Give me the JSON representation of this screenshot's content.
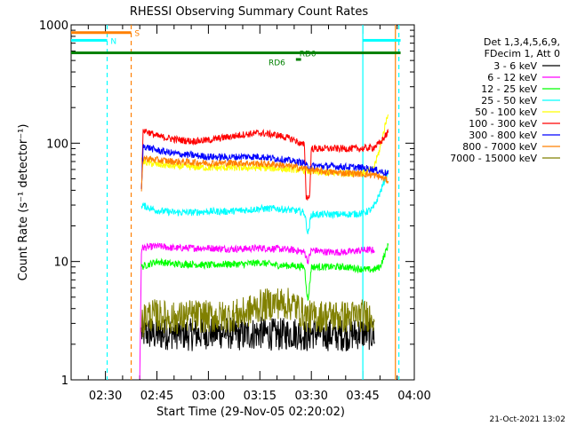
{
  "chart_data": {
    "type": "line",
    "title": "RHESSI Observing Summary Count Rates",
    "xlabel": "Start Time (29-Nov-05 02:20:02)",
    "ylabel": "Count Rate (s⁻¹ detector⁻¹)",
    "y_scale": "log",
    "ylim": [
      1,
      1000
    ],
    "xlim_minutes": [
      0,
      100
    ],
    "x_ticks": [
      {
        "label": "02:30",
        "minute": 10
      },
      {
        "label": "02:45",
        "minute": 25
      },
      {
        "label": "03:00",
        "minute": 40
      },
      {
        "label": "03:15",
        "minute": 55
      },
      {
        "label": "03:30",
        "minute": 70
      },
      {
        "label": "03:45",
        "minute": 85
      },
      {
        "label": "04:00",
        "minute": 100
      }
    ],
    "y_ticks": [
      {
        "label": "1",
        "value": 1
      },
      {
        "label": "10",
        "value": 10
      },
      {
        "label": "100",
        "value": 100
      },
      {
        "label": "1000",
        "value": 1000
      }
    ],
    "legend_header": [
      "Det 1,3,4,5,6,9,",
      "FDecim 1, Att 0"
    ],
    "series": [
      {
        "name": "3 - 6 keV",
        "color": "#000000",
        "x": [
          20.5,
          25,
          30,
          35,
          40,
          45,
          50,
          55,
          60,
          65,
          68,
          69,
          70,
          75,
          80,
          85,
          88.5
        ],
        "y": [
          2.5,
          2.4,
          2.5,
          2.4,
          2.5,
          2.5,
          2.4,
          2.5,
          2.4,
          2.5,
          2.4,
          2.3,
          2.5,
          2.4,
          2.4,
          2.5,
          2.4
        ]
      },
      {
        "name": "6 - 12 keV",
        "color": "#ff00ff",
        "x": [
          20,
          20.5,
          25,
          30,
          35,
          40,
          45,
          50,
          55,
          60,
          65,
          68,
          69,
          70,
          75,
          80,
          85,
          88.5
        ],
        "y": [
          1,
          13,
          13.5,
          13,
          13,
          13,
          12.8,
          12.8,
          13,
          12.8,
          12.5,
          12,
          10,
          12.5,
          12,
          12,
          12.5,
          12.5
        ]
      },
      {
        "name": "12 - 25 keV",
        "color": "#00ff00",
        "x": [
          20.5,
          25,
          30,
          35,
          40,
          45,
          50,
          55,
          60,
          65,
          68,
          69,
          70,
          75,
          80,
          85,
          88,
          90,
          92.5
        ],
        "y": [
          9,
          10,
          9.5,
          9.5,
          9.3,
          9.5,
          9.5,
          9.8,
          9.3,
          9.2,
          9,
          4.5,
          9,
          9,
          9,
          8.6,
          8.5,
          9,
          14
        ]
      },
      {
        "name": "25 - 50 keV",
        "color": "#00ffff",
        "x": [
          20.5,
          25,
          30,
          35,
          40,
          45,
          50,
          55,
          60,
          65,
          68,
          69,
          70,
          75,
          80,
          85,
          88,
          90,
          92.5
        ],
        "y": [
          30,
          27,
          26,
          26,
          26.5,
          26.5,
          27,
          28,
          28,
          27,
          26,
          17,
          25,
          25,
          25,
          25.5,
          28,
          38,
          60
        ]
      },
      {
        "name": "50 - 100 keV",
        "color": "#ffff00",
        "x": [
          20.5,
          25,
          30,
          35,
          40,
          45,
          50,
          55,
          60,
          65,
          68,
          69,
          70,
          75,
          80,
          85,
          88,
          90,
          92.5
        ],
        "y": [
          70,
          66,
          64,
          63,
          62,
          62,
          62,
          62,
          61,
          60,
          59,
          58,
          57,
          56,
          56,
          56,
          60,
          90,
          190
        ]
      },
      {
        "name": "100 - 300 keV",
        "color": "#ff0000",
        "x": [
          20.5,
          21,
          25,
          30,
          35,
          40,
          45,
          50,
          55,
          60,
          65,
          67,
          68,
          68.5,
          69.5,
          70,
          75,
          80,
          85,
          88,
          90,
          92.5
        ],
        "y": [
          40,
          130,
          115,
          108,
          104,
          106,
          112,
          118,
          122,
          117,
          107,
          98,
          96,
          35,
          35,
          90,
          90,
          90,
          90,
          92,
          100,
          125
        ]
      },
      {
        "name": "300 - 800 keV",
        "color": "#0000ff",
        "x": [
          20.5,
          21,
          25,
          30,
          35,
          40,
          45,
          50,
          55,
          60,
          65,
          68,
          69,
          70,
          75,
          80,
          85,
          88,
          90,
          92.5
        ],
        "y": [
          40,
          95,
          87,
          82,
          79,
          77,
          76,
          77,
          77,
          74,
          70,
          68,
          62,
          64,
          64,
          63,
          62,
          60,
          58,
          55
        ]
      },
      {
        "name": "800 - 7000 keV",
        "color": "#ff8000",
        "x": [
          20.5,
          21,
          25,
          30,
          35,
          40,
          45,
          50,
          55,
          60,
          65,
          68,
          70,
          75,
          80,
          85,
          88,
          90,
          92.5
        ],
        "y": [
          40,
          75,
          72,
          70,
          69,
          68,
          68,
          68,
          67,
          66,
          63,
          61,
          59,
          57,
          56,
          55,
          54,
          52,
          48
        ]
      },
      {
        "name": "7000 - 15000 keV",
        "color": "#808000",
        "x": [
          20.5,
          22,
          25,
          30,
          35,
          40,
          45,
          50,
          55,
          60,
          65,
          68,
          70,
          75,
          80,
          85,
          88.5
        ],
        "y": [
          3,
          3.5,
          3.5,
          3.3,
          3.5,
          3.4,
          3.4,
          3.6,
          4.2,
          4.5,
          4.3,
          3.5,
          3.4,
          3.5,
          3.4,
          3.5,
          3.5
        ]
      }
    ],
    "vertical_lines": [
      {
        "minute": 10.5,
        "color": "#00ffff",
        "style": "dashed"
      },
      {
        "minute": 17.5,
        "color": "#ff8000",
        "style": "dashed"
      },
      {
        "minute": 85.0,
        "color": "#00ffff",
        "style": "solid"
      },
      {
        "minute": 94.5,
        "color": "#ff8000",
        "style": "solid"
      },
      {
        "minute": 95.5,
        "color": "#00ffff",
        "style": "dashed"
      }
    ],
    "flag_bars": [
      {
        "label": "S",
        "color": "#ff8000",
        "minute_start": 0,
        "minute_end": 17.5,
        "value": 860
      },
      {
        "label": "N",
        "color": "#00ffff",
        "minute_start": 0,
        "minute_end": 10.5,
        "value": 740
      },
      {
        "label": "N",
        "color": "#00ffff",
        "minute_start": 85,
        "minute_end": 96,
        "value": 740
      },
      {
        "label": "RD0",
        "color": "#008000",
        "minute_start": 0,
        "minute_end": 96,
        "value": 580
      },
      {
        "label": "RD6",
        "color": "#008000",
        "minute_start": 65.5,
        "minute_end": 67,
        "value": 510
      }
    ],
    "flag_labels": {
      "S": "S",
      "N": "N",
      "RD0": "RD0",
      "RD6": "RD6"
    },
    "footer": "21-Oct-2021 13:02"
  }
}
